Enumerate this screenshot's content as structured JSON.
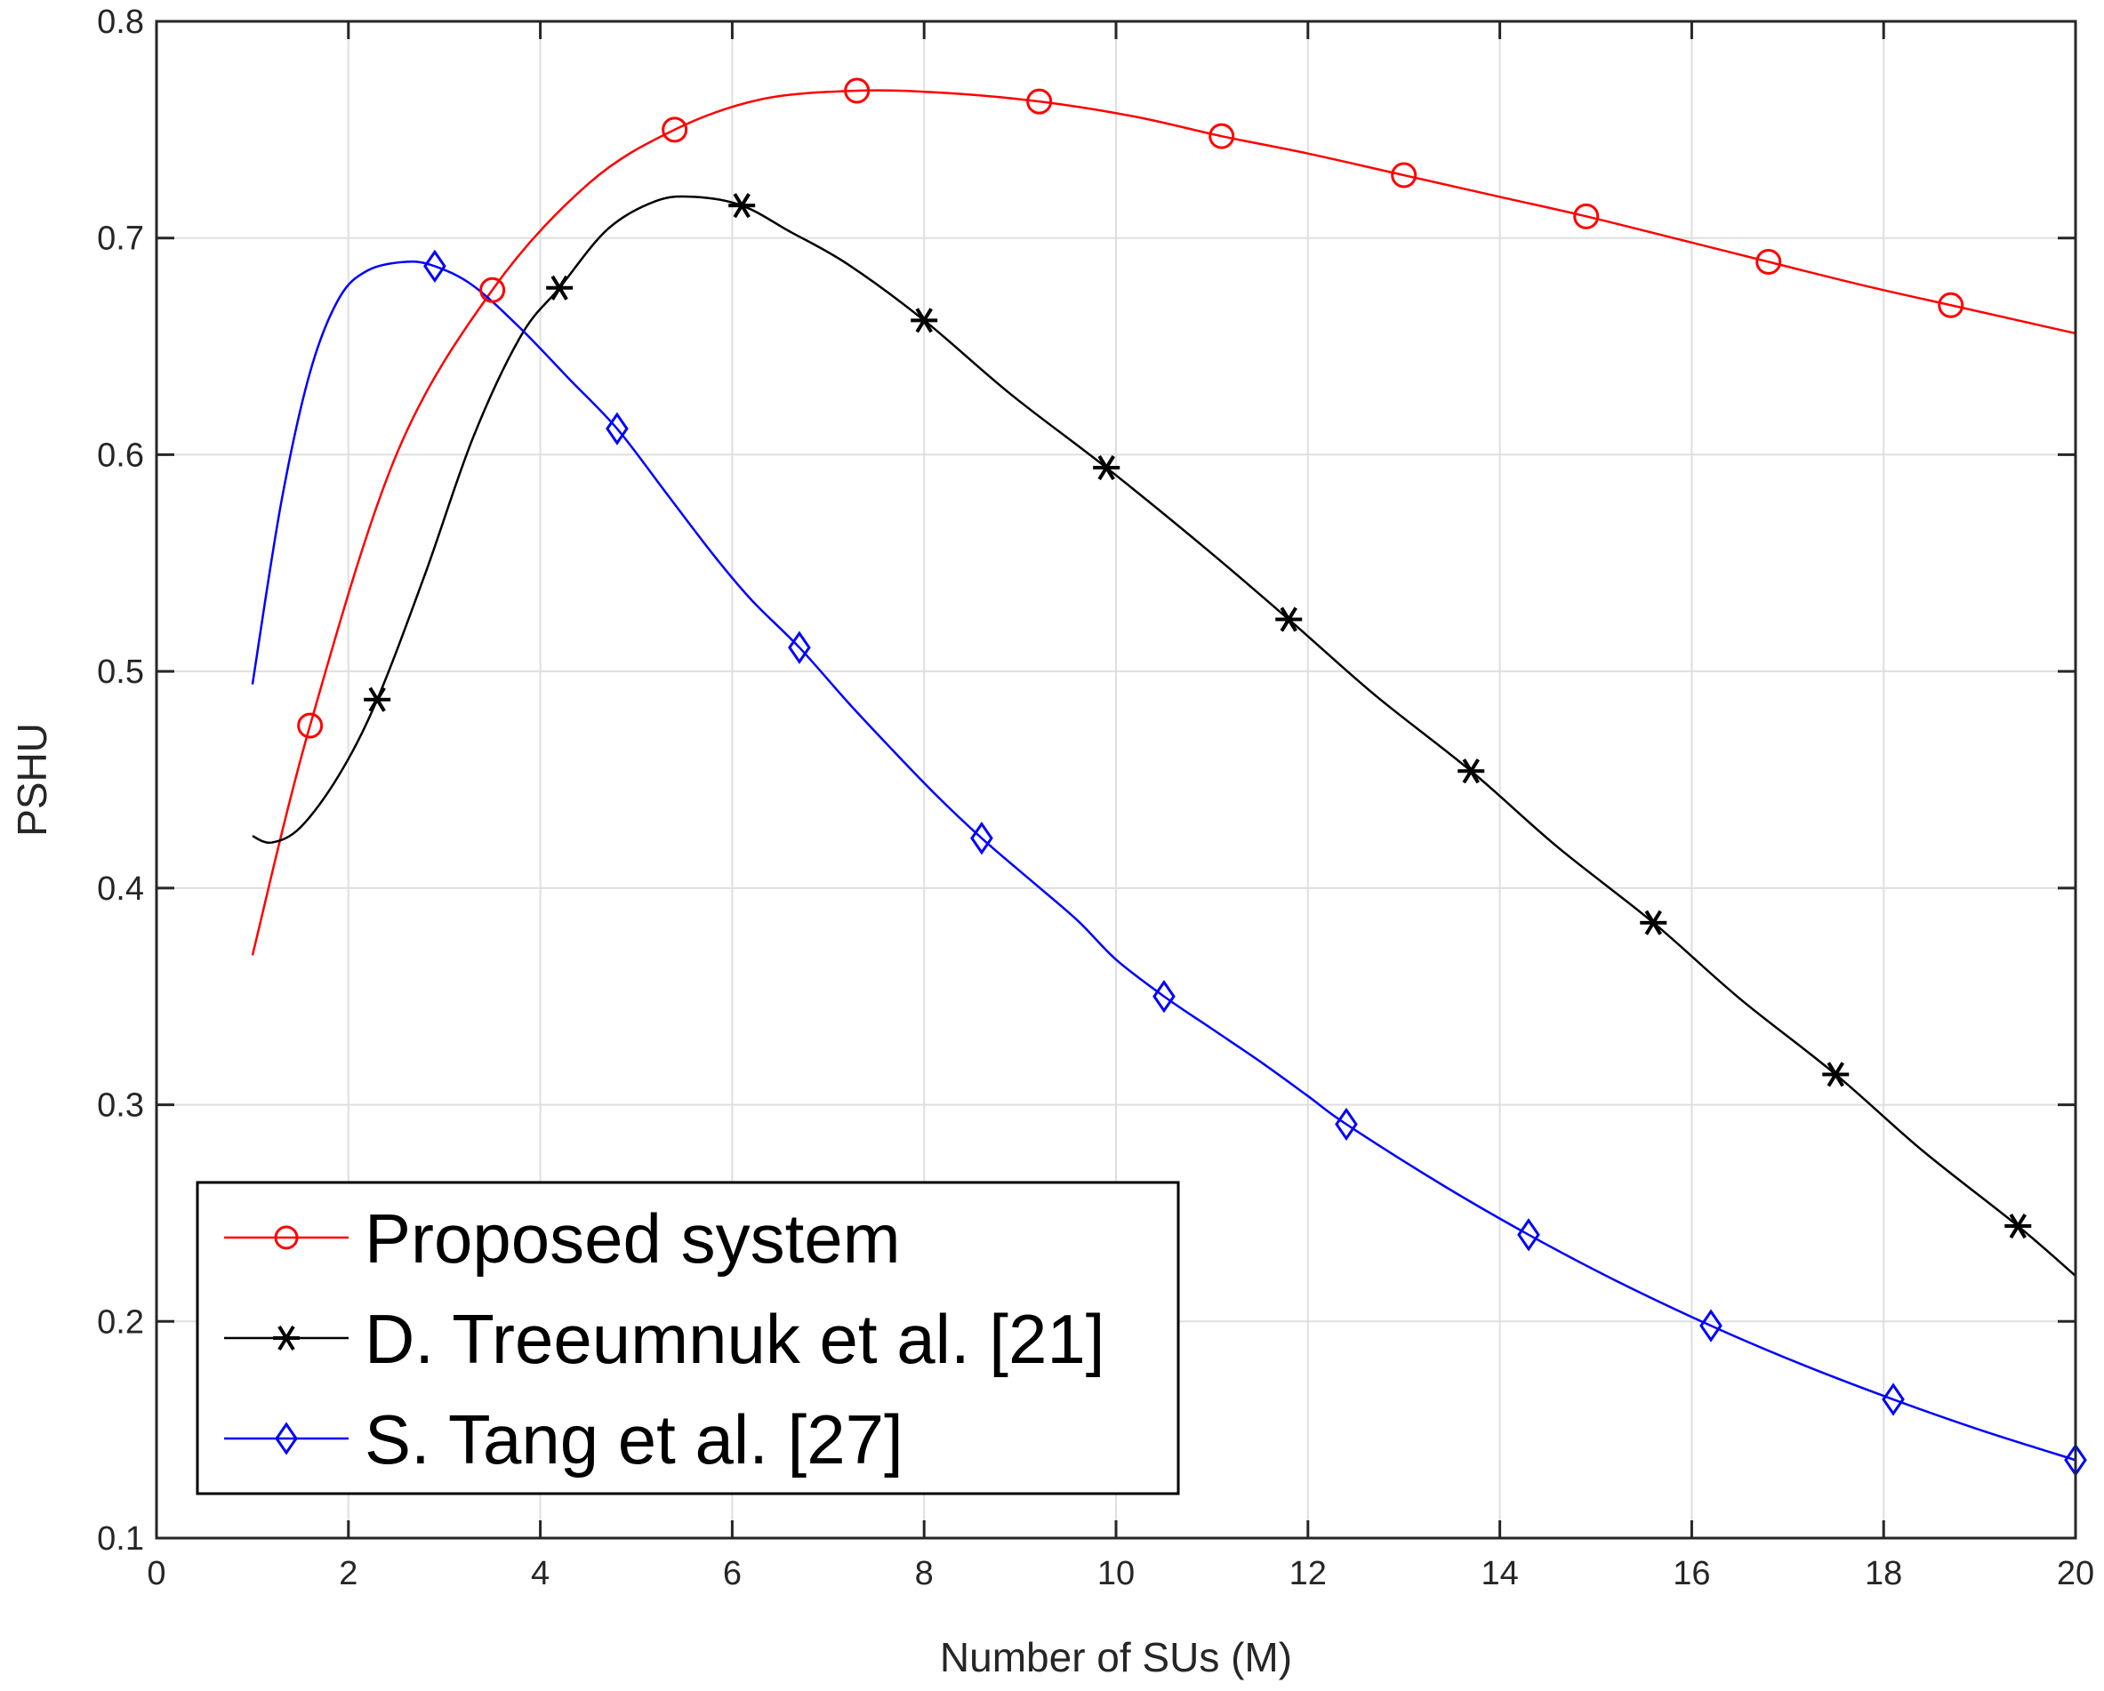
{
  "chart_data": {
    "type": "line",
    "title": "",
    "xlabel": "Number of SUs (M)",
    "ylabel": "PSHU",
    "xlim": [
      0,
      20
    ],
    "ylim": [
      0.1,
      0.8
    ],
    "xticks": [
      0,
      2,
      4,
      6,
      8,
      10,
      12,
      14,
      16,
      18,
      20
    ],
    "yticks": [
      0.1,
      0.2,
      0.3,
      0.4,
      0.5,
      0.6,
      0.7,
      0.8
    ],
    "xtick_labels": [
      "0",
      "2",
      "4",
      "6",
      "8",
      "10",
      "12",
      "14",
      "16",
      "18",
      "20"
    ],
    "ytick_labels": [
      "0.1",
      "0.2",
      "0.3",
      "0.4",
      "0.5",
      "0.6",
      "0.7",
      "0.8"
    ],
    "grid": true,
    "legend_location": "bottom-left",
    "series": [
      {
        "name": "Proposed system",
        "color": "#ff0000",
        "marker": "circle",
        "curve": {
          "x": [
            1.0,
            1.6,
            2.5,
            3.5,
            4.5,
            5.4,
            6.3,
            7.3,
            8.2,
            9.2,
            10.2,
            11.1,
            12.0,
            13.0,
            14.0,
            14.9,
            15.9,
            16.8,
            17.8,
            18.7,
            19.4,
            20.0
          ],
          "y": [
            0.369,
            0.475,
            0.6,
            0.676,
            0.725,
            0.75,
            0.764,
            0.768,
            0.767,
            0.763,
            0.756,
            0.747,
            0.739,
            0.729,
            0.719,
            0.71,
            0.699,
            0.689,
            0.678,
            0.669,
            0.662,
            0.656
          ]
        },
        "markers": {
          "x": [
            1.6,
            3.5,
            5.4,
            7.3,
            9.2,
            11.1,
            13.0,
            14.9,
            16.8,
            18.7
          ],
          "y": [
            0.475,
            0.676,
            0.75,
            0.768,
            0.763,
            0.747,
            0.729,
            0.71,
            0.689,
            0.669
          ]
        }
      },
      {
        "name": "D. Treeumnuk et al. [21]",
        "color": "#000000",
        "marker": "asterisk",
        "curve": {
          "x": [
            1.0,
            1.2,
            1.5,
            1.9,
            2.3,
            2.8,
            3.3,
            3.8,
            4.2,
            4.7,
            5.2,
            5.6,
            6.1,
            6.6,
            7.2,
            8.0,
            8.9,
            9.9,
            10.9,
            11.8,
            12.7,
            13.7,
            14.6,
            15.6,
            16.5,
            17.5,
            18.4,
            19.4,
            20.0
          ],
          "y": [
            0.424,
            0.421,
            0.428,
            0.452,
            0.487,
            0.545,
            0.608,
            0.655,
            0.677,
            0.704,
            0.717,
            0.719,
            0.715,
            0.703,
            0.688,
            0.662,
            0.628,
            0.594,
            0.558,
            0.524,
            0.489,
            0.454,
            0.419,
            0.384,
            0.349,
            0.314,
            0.279,
            0.244,
            0.221
          ]
        },
        "markers": {
          "x": [
            2.3,
            4.2,
            6.1,
            8.0,
            9.9,
            11.8,
            13.7,
            15.6,
            17.5,
            19.4
          ],
          "y": [
            0.487,
            0.677,
            0.715,
            0.662,
            0.594,
            0.524,
            0.454,
            0.384,
            0.314,
            0.244
          ]
        }
      },
      {
        "name": "S. Tang et al. [27]",
        "color": "#0000ff",
        "marker": "diamond",
        "curve": {
          "x": [
            1.0,
            1.3,
            1.6,
            1.9,
            2.2,
            2.6,
            2.9,
            3.3,
            3.8,
            4.3,
            4.8,
            5.3,
            5.8,
            6.2,
            6.7,
            7.2,
            7.6,
            8.1,
            8.6,
            9.1,
            9.6,
            10.0,
            10.5,
            11.0,
            11.5,
            12.0,
            12.4,
            13.4,
            14.3,
            15.2,
            16.2,
            17.1,
            18.1,
            19.0,
            20.0
          ],
          "y": [
            0.494,
            0.578,
            0.638,
            0.672,
            0.685,
            0.689,
            0.687,
            0.678,
            0.658,
            0.635,
            0.612,
            0.583,
            0.554,
            0.533,
            0.511,
            0.486,
            0.467,
            0.444,
            0.423,
            0.404,
            0.385,
            0.367,
            0.35,
            0.335,
            0.32,
            0.304,
            0.291,
            0.263,
            0.24,
            0.219,
            0.198,
            0.181,
            0.164,
            0.15,
            0.136
          ]
        },
        "markers": {
          "x": [
            2.9,
            4.8,
            6.7,
            8.6,
            10.5,
            12.4,
            14.3,
            16.2,
            18.1,
            20.0
          ],
          "y": [
            0.687,
            0.612,
            0.511,
            0.423,
            0.35,
            0.291,
            0.24,
            0.198,
            0.164,
            0.136
          ]
        }
      }
    ]
  }
}
